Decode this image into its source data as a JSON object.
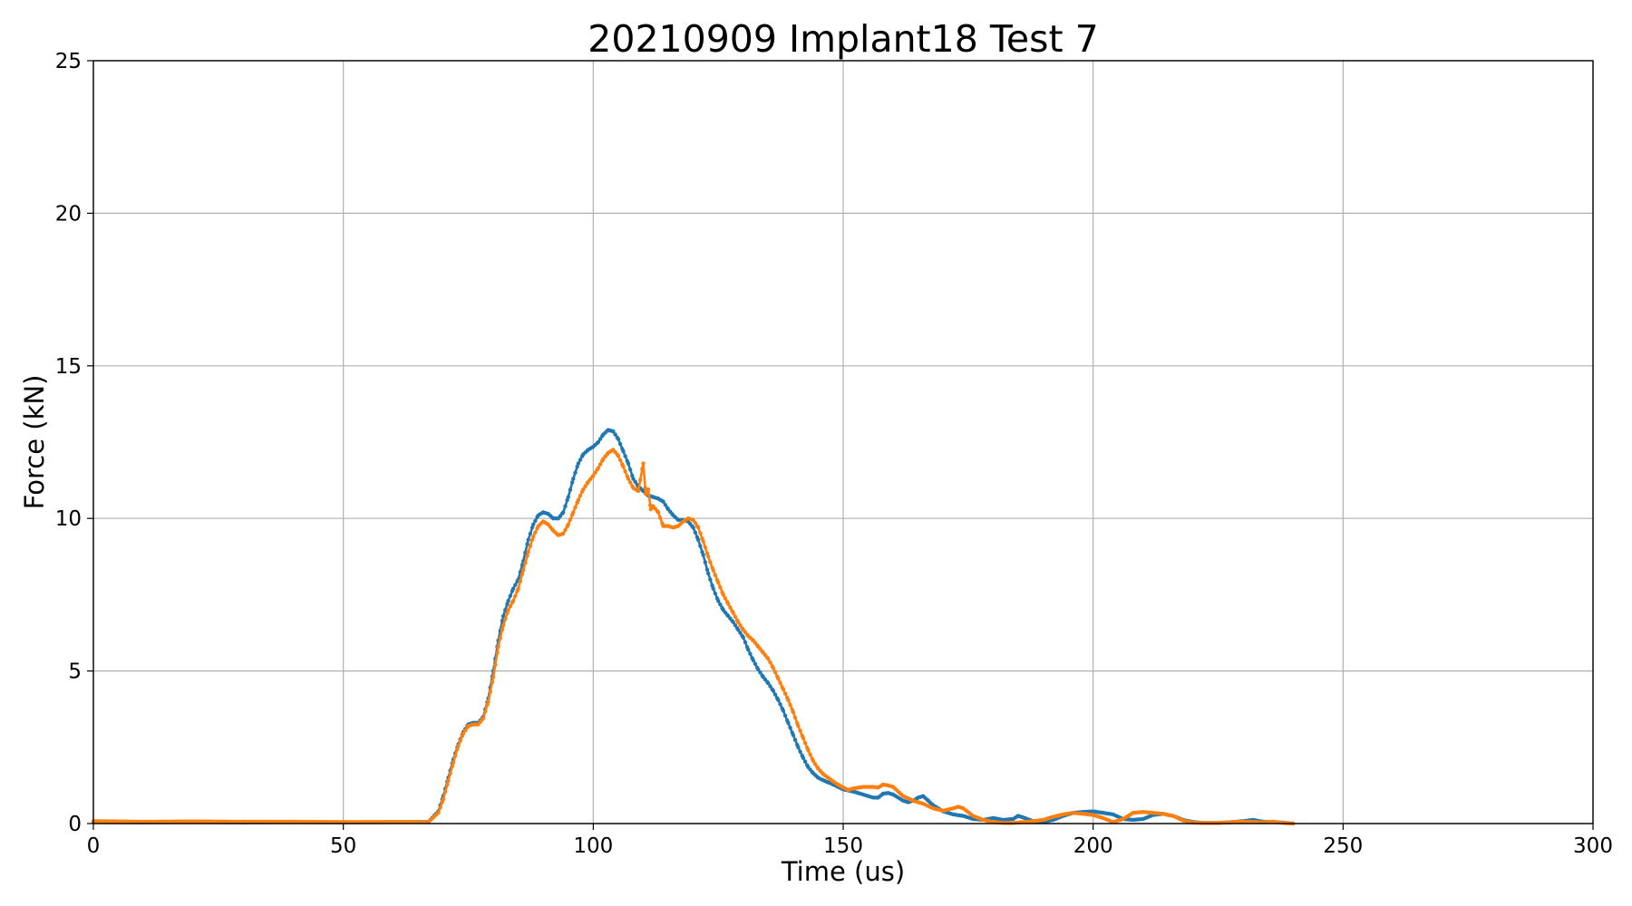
{
  "chart_data": {
    "type": "line",
    "title": "20210909 Implant18 Test 7",
    "xlabel": "Time (us)",
    "ylabel": "Force (kN)",
    "xlim": [
      0,
      300
    ],
    "ylim": [
      0,
      25
    ],
    "xticks": [
      "0",
      "50",
      "100",
      "150",
      "200",
      "250",
      "300"
    ],
    "yticks": [
      "0",
      "5",
      "10",
      "15",
      "20",
      "25"
    ],
    "grid": true,
    "markers": "small-dots",
    "series": [
      {
        "color": "#1f77b4",
        "points": [
          [
            0,
            0.05
          ],
          [
            10,
            0.04
          ],
          [
            20,
            0.05
          ],
          [
            30,
            0.04
          ],
          [
            40,
            0.05
          ],
          [
            50,
            0.04
          ],
          [
            60,
            0.05
          ],
          [
            67,
            0.05
          ],
          [
            69,
            0.4
          ],
          [
            70,
            0.9
          ],
          [
            71,
            1.5
          ],
          [
            72,
            2.1
          ],
          [
            73,
            2.6
          ],
          [
            74,
            3.0
          ],
          [
            75,
            3.25
          ],
          [
            76,
            3.3
          ],
          [
            77,
            3.3
          ],
          [
            78,
            3.5
          ],
          [
            79,
            4.1
          ],
          [
            80,
            5.0
          ],
          [
            81,
            6.0
          ],
          [
            82,
            6.8
          ],
          [
            83,
            7.3
          ],
          [
            84,
            7.7
          ],
          [
            85,
            8.0
          ],
          [
            86,
            8.6
          ],
          [
            87,
            9.3
          ],
          [
            88,
            9.8
          ],
          [
            89,
            10.1
          ],
          [
            90,
            10.2
          ],
          [
            91,
            10.15
          ],
          [
            92,
            10.0
          ],
          [
            93,
            10.0
          ],
          [
            94,
            10.2
          ],
          [
            95,
            10.7
          ],
          [
            96,
            11.3
          ],
          [
            97,
            11.8
          ],
          [
            98,
            12.1
          ],
          [
            99,
            12.25
          ],
          [
            100,
            12.35
          ],
          [
            101,
            12.5
          ],
          [
            102,
            12.75
          ],
          [
            103,
            12.9
          ],
          [
            104,
            12.85
          ],
          [
            105,
            12.6
          ],
          [
            106,
            12.2
          ],
          [
            107,
            11.8
          ],
          [
            108,
            11.3
          ],
          [
            109,
            11.05
          ],
          [
            110,
            10.9
          ],
          [
            111,
            10.75
          ],
          [
            112,
            10.7
          ],
          [
            113,
            10.65
          ],
          [
            114,
            10.55
          ],
          [
            115,
            10.3
          ],
          [
            116,
            10.1
          ],
          [
            117,
            9.95
          ],
          [
            118,
            9.95
          ],
          [
            119,
            9.9
          ],
          [
            120,
            9.7
          ],
          [
            121,
            9.3
          ],
          [
            122,
            8.8
          ],
          [
            123,
            8.2
          ],
          [
            124,
            7.7
          ],
          [
            125,
            7.3
          ],
          [
            126,
            7.0
          ],
          [
            127,
            6.8
          ],
          [
            128,
            6.6
          ],
          [
            129,
            6.35
          ],
          [
            130,
            6.1
          ],
          [
            131,
            5.7
          ],
          [
            132,
            5.35
          ],
          [
            133,
            5.05
          ],
          [
            134,
            4.8
          ],
          [
            135,
            4.6
          ],
          [
            136,
            4.35
          ],
          [
            137,
            4.05
          ],
          [
            138,
            3.7
          ],
          [
            139,
            3.3
          ],
          [
            140,
            2.9
          ],
          [
            141,
            2.5
          ],
          [
            142,
            2.15
          ],
          [
            143,
            1.85
          ],
          [
            144,
            1.65
          ],
          [
            145,
            1.5
          ],
          [
            146,
            1.42
          ],
          [
            147,
            1.35
          ],
          [
            148,
            1.28
          ],
          [
            149,
            1.2
          ],
          [
            150,
            1.12
          ],
          [
            152,
            1.05
          ],
          [
            154,
            0.95
          ],
          [
            156,
            0.85
          ],
          [
            157,
            0.85
          ],
          [
            158,
            0.98
          ],
          [
            159,
            1.0
          ],
          [
            160,
            0.95
          ],
          [
            162,
            0.75
          ],
          [
            163,
            0.7
          ],
          [
            164,
            0.75
          ],
          [
            165,
            0.85
          ],
          [
            166,
            0.9
          ],
          [
            167,
            0.75
          ],
          [
            168,
            0.6
          ],
          [
            170,
            0.4
          ],
          [
            172,
            0.3
          ],
          [
            174,
            0.25
          ],
          [
            176,
            0.15
          ],
          [
            178,
            0.12
          ],
          [
            180,
            0.18
          ],
          [
            182,
            0.12
          ],
          [
            184,
            0.15
          ],
          [
            185,
            0.25
          ],
          [
            186,
            0.2
          ],
          [
            188,
            0.08
          ],
          [
            190,
            0.05
          ],
          [
            192,
            0.12
          ],
          [
            194,
            0.25
          ],
          [
            196,
            0.35
          ],
          [
            198,
            0.38
          ],
          [
            200,
            0.4
          ],
          [
            202,
            0.35
          ],
          [
            204,
            0.3
          ],
          [
            206,
            0.15
          ],
          [
            208,
            0.12
          ],
          [
            210,
            0.15
          ],
          [
            212,
            0.28
          ],
          [
            214,
            0.32
          ],
          [
            216,
            0.25
          ],
          [
            218,
            0.12
          ],
          [
            220,
            0.05
          ],
          [
            222,
            0.02
          ],
          [
            225,
            0.02
          ],
          [
            228,
            0.05
          ],
          [
            230,
            0.08
          ],
          [
            232,
            0.12
          ],
          [
            234,
            0.06
          ],
          [
            236,
            0.05
          ],
          [
            238,
            0.03
          ],
          [
            240,
            0.0
          ]
        ]
      },
      {
        "color": "#ff7f0e",
        "points": [
          [
            0,
            0.08
          ],
          [
            10,
            0.06
          ],
          [
            20,
            0.07
          ],
          [
            30,
            0.06
          ],
          [
            40,
            0.06
          ],
          [
            50,
            0.05
          ],
          [
            60,
            0.05
          ],
          [
            67,
            0.05
          ],
          [
            69,
            0.35
          ],
          [
            70,
            0.8
          ],
          [
            71,
            1.4
          ],
          [
            72,
            2.0
          ],
          [
            73,
            2.55
          ],
          [
            74,
            2.95
          ],
          [
            75,
            3.2
          ],
          [
            76,
            3.25
          ],
          [
            77,
            3.25
          ],
          [
            78,
            3.45
          ],
          [
            79,
            4.0
          ],
          [
            80,
            4.8
          ],
          [
            81,
            5.8
          ],
          [
            82,
            6.5
          ],
          [
            83,
            7.0
          ],
          [
            84,
            7.3
          ],
          [
            85,
            7.7
          ],
          [
            86,
            8.3
          ],
          [
            87,
            8.9
          ],
          [
            88,
            9.4
          ],
          [
            89,
            9.75
          ],
          [
            90,
            9.9
          ],
          [
            91,
            9.8
          ],
          [
            92,
            9.6
          ],
          [
            93,
            9.45
          ],
          [
            94,
            9.5
          ],
          [
            95,
            9.8
          ],
          [
            96,
            10.2
          ],
          [
            97,
            10.6
          ],
          [
            98,
            10.95
          ],
          [
            99,
            11.2
          ],
          [
            100,
            11.4
          ],
          [
            101,
            11.65
          ],
          [
            102,
            11.95
          ],
          [
            103,
            12.15
          ],
          [
            104,
            12.25
          ],
          [
            105,
            12.05
          ],
          [
            106,
            11.7
          ],
          [
            107,
            11.3
          ],
          [
            108,
            11.0
          ],
          [
            109,
            10.9
          ],
          [
            110,
            11.8
          ],
          [
            110.5,
            10.8
          ],
          [
            111,
            10.95
          ],
          [
            111.5,
            10.3
          ],
          [
            112,
            10.4
          ],
          [
            113,
            10.2
          ],
          [
            114,
            9.75
          ],
          [
            115,
            9.75
          ],
          [
            116,
            9.7
          ],
          [
            117,
            9.75
          ],
          [
            118,
            9.9
          ],
          [
            119,
            10.0
          ],
          [
            120,
            9.95
          ],
          [
            121,
            9.7
          ],
          [
            122,
            9.25
          ],
          [
            123,
            8.75
          ],
          [
            124,
            8.3
          ],
          [
            125,
            7.9
          ],
          [
            126,
            7.5
          ],
          [
            127,
            7.2
          ],
          [
            128,
            6.9
          ],
          [
            129,
            6.6
          ],
          [
            130,
            6.35
          ],
          [
            131,
            6.15
          ],
          [
            132,
            6.0
          ],
          [
            133,
            5.8
          ],
          [
            134,
            5.6
          ],
          [
            135,
            5.4
          ],
          [
            136,
            5.1
          ],
          [
            137,
            4.75
          ],
          [
            138,
            4.4
          ],
          [
            139,
            4.05
          ],
          [
            140,
            3.65
          ],
          [
            141,
            3.2
          ],
          [
            142,
            2.8
          ],
          [
            143,
            2.4
          ],
          [
            144,
            2.05
          ],
          [
            145,
            1.8
          ],
          [
            146,
            1.62
          ],
          [
            147,
            1.5
          ],
          [
            148,
            1.38
          ],
          [
            149,
            1.27
          ],
          [
            150,
            1.18
          ],
          [
            151,
            1.1
          ],
          [
            152,
            1.15
          ],
          [
            154,
            1.2
          ],
          [
            156,
            1.2
          ],
          [
            157,
            1.18
          ],
          [
            158,
            1.28
          ],
          [
            159,
            1.25
          ],
          [
            160,
            1.2
          ],
          [
            162,
            0.9
          ],
          [
            164,
            0.75
          ],
          [
            166,
            0.65
          ],
          [
            168,
            0.5
          ],
          [
            170,
            0.42
          ],
          [
            172,
            0.5
          ],
          [
            173,
            0.55
          ],
          [
            174,
            0.5
          ],
          [
            176,
            0.25
          ],
          [
            178,
            0.12
          ],
          [
            180,
            0.05
          ],
          [
            182,
            0.02
          ],
          [
            184,
            0.02
          ],
          [
            186,
            0.05
          ],
          [
            188,
            0.08
          ],
          [
            190,
            0.12
          ],
          [
            192,
            0.22
          ],
          [
            194,
            0.3
          ],
          [
            196,
            0.35
          ],
          [
            198,
            0.32
          ],
          [
            200,
            0.28
          ],
          [
            202,
            0.18
          ],
          [
            204,
            0.05
          ],
          [
            206,
            0.15
          ],
          [
            208,
            0.35
          ],
          [
            210,
            0.38
          ],
          [
            212,
            0.35
          ],
          [
            214,
            0.32
          ],
          [
            216,
            0.25
          ],
          [
            218,
            0.1
          ],
          [
            220,
            0.03
          ],
          [
            222,
            0.02
          ],
          [
            225,
            0.02
          ],
          [
            228,
            0.05
          ],
          [
            230,
            0.06
          ],
          [
            232,
            0.05
          ],
          [
            234,
            0.04
          ],
          [
            236,
            0.06
          ],
          [
            238,
            0.02
          ],
          [
            240,
            0.0
          ]
        ]
      }
    ]
  }
}
